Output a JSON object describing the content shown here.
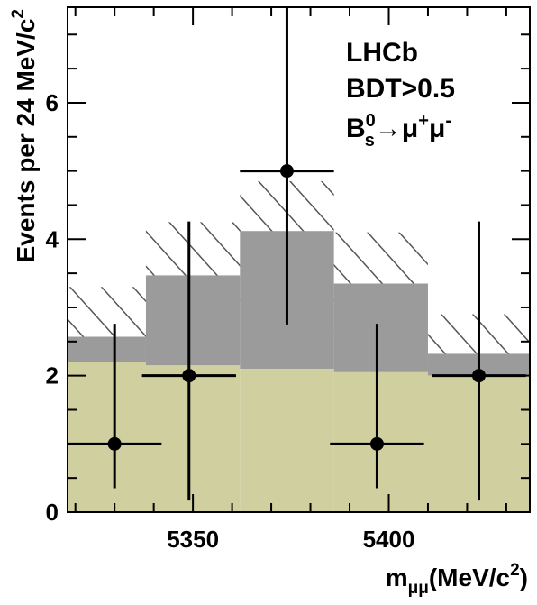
{
  "chart_data": {
    "type": "bar",
    "annotation_lines": [
      "LHCb",
      "BDT>0.5"
    ],
    "decay_label": {
      "particle": "B",
      "superscript": "0",
      "subscript": "s",
      "arrow": "→",
      "product_1": "μ",
      "product_1_charge": "+",
      "product_2": "μ",
      "product_2_charge": "-"
    },
    "xlabel": {
      "variable": "m",
      "subscript": "μμ",
      "unit_prefix": "(MeV/c",
      "unit_power": "2",
      "unit_suffix": ")"
    },
    "ylabel": {
      "text": "Events per 24 MeV/c",
      "power": "2"
    },
    "xlim": [
      5318,
      5436
    ],
    "ylim": [
      0,
      7.4
    ],
    "x_ticks": [
      5350,
      5400
    ],
    "x_minor_step": 10,
    "y_ticks": [
      0,
      2,
      4,
      6
    ],
    "y_minor_step": 0.5,
    "bin_edges": [
      5318,
      5338,
      5362,
      5386,
      5410,
      5436
    ],
    "background": [
      2.2,
      2.15,
      2.1,
      2.05,
      2.0
    ],
    "signal_plus_background": [
      2.57,
      3.47,
      4.12,
      3.35,
      2.32
    ],
    "uncertainty_lower": [
      1.88,
      2.72,
      3.3,
      2.55,
      1.75
    ],
    "uncertainty_upper": [
      3.3,
      4.25,
      4.85,
      4.1,
      2.9
    ],
    "data_points": [
      {
        "x": 5330,
        "y": 1,
        "y_low": 0.35,
        "y_high": 2.76,
        "x_low": 5318,
        "x_high": 5342
      },
      {
        "x": 5349,
        "y": 2,
        "y_low": 0.17,
        "y_high": 4.26,
        "x_low": 5337,
        "x_high": 5361
      },
      {
        "x": 5374,
        "y": 5,
        "y_low": 2.75,
        "y_high": 7.4,
        "x_low": 5362,
        "x_high": 5386
      },
      {
        "x": 5397,
        "y": 1,
        "y_low": 0.35,
        "y_high": 2.76,
        "x_low": 5385,
        "x_high": 5409
      },
      {
        "x": 5423,
        "y": 2,
        "y_low": 0.17,
        "y_high": 4.26,
        "x_low": 5411,
        "x_high": 5435
      }
    ],
    "colors": {
      "background_fill": "#cfcfa0",
      "signal_fill": "#9b9b9b",
      "hatch": "#555555",
      "data": "#000000"
    },
    "grid": false
  }
}
